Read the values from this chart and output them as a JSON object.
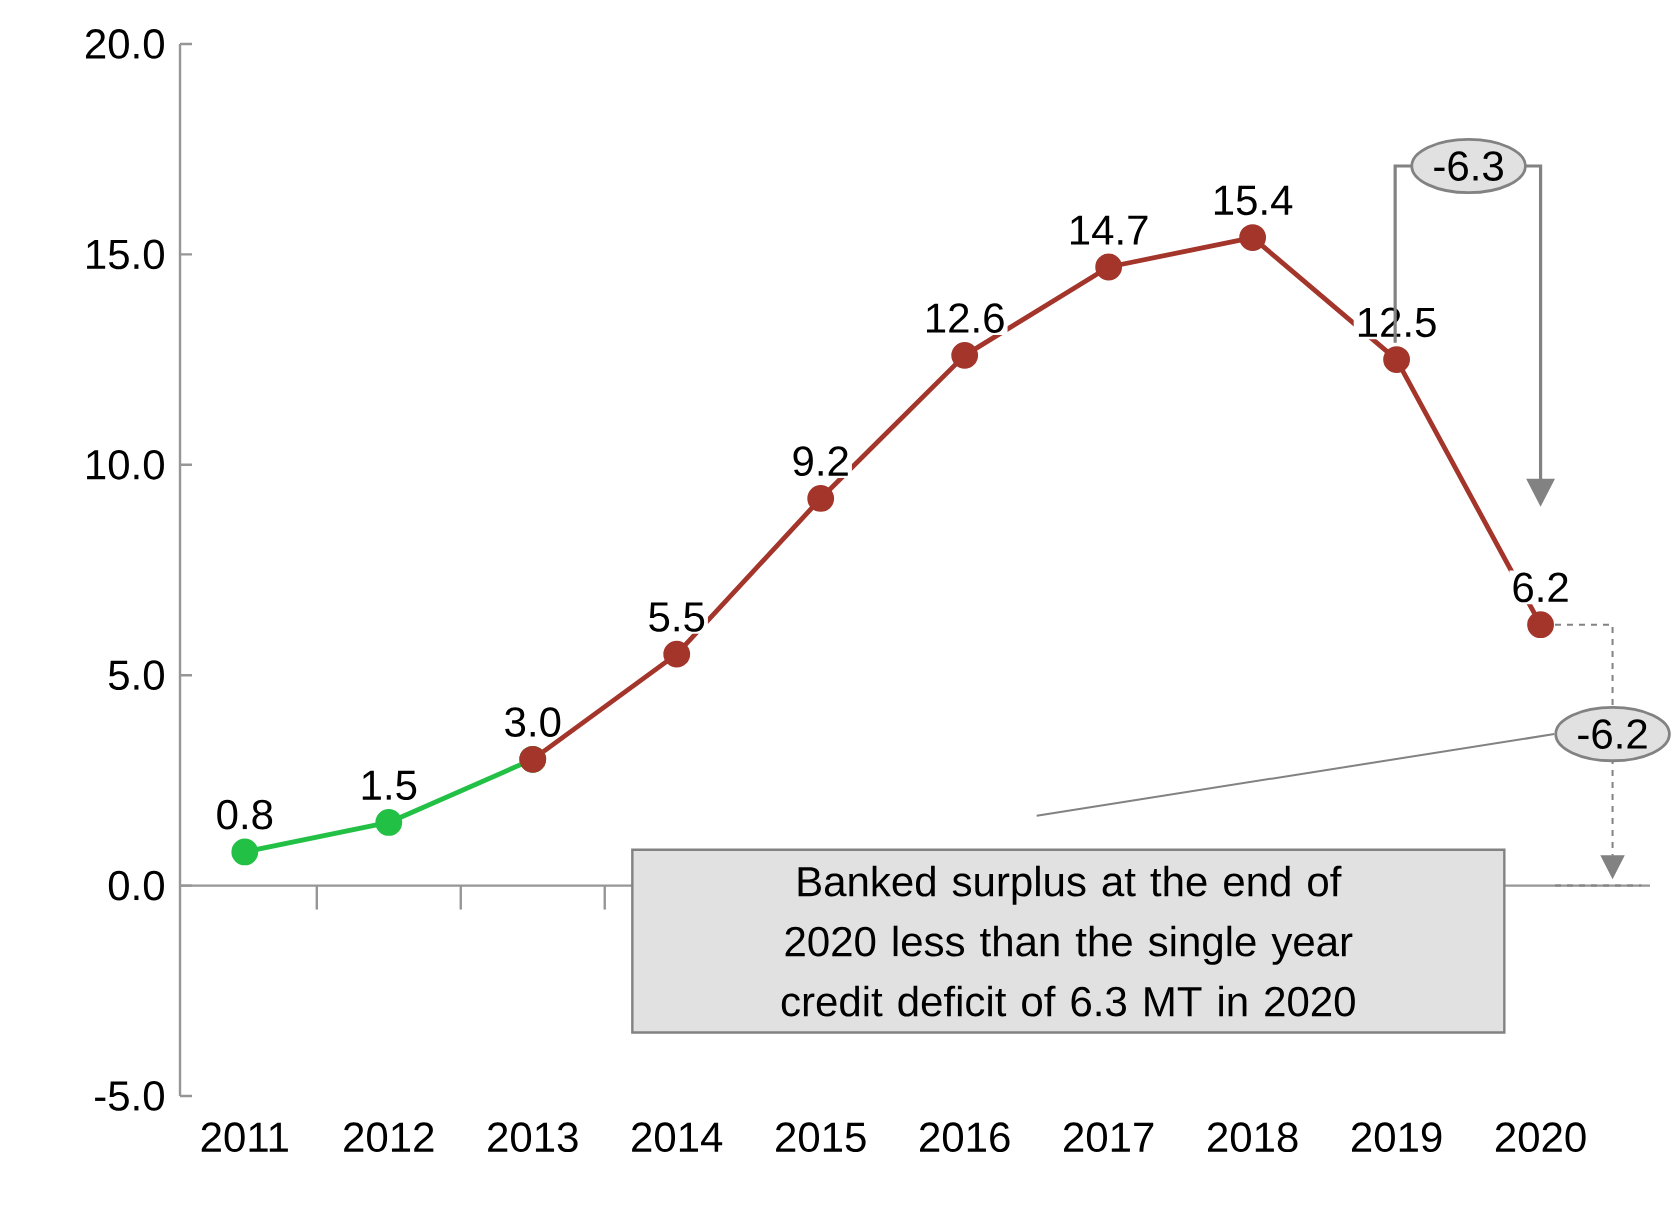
{
  "chart_data": {
    "type": "line",
    "categories": [
      "2011",
      "2012",
      "2013",
      "2014",
      "2015",
      "2016",
      "2017",
      "2018",
      "2019",
      "2020"
    ],
    "series": [
      {
        "color": "#22c045",
        "values": [
          0.8,
          1.5,
          3.0,
          null,
          null,
          null,
          null,
          null,
          null,
          null
        ],
        "value_labels": [
          "0.8",
          "1.5",
          "3.0",
          null,
          null,
          null,
          null,
          null,
          null,
          null
        ]
      },
      {
        "color": "#a3352b",
        "values": [
          null,
          null,
          3.0,
          5.5,
          9.2,
          12.6,
          14.7,
          15.4,
          12.5,
          6.2
        ],
        "value_labels": [
          null,
          null,
          null,
          "5.5",
          "9.2",
          "12.6",
          "14.7",
          "15.4",
          "12.5",
          "6.2"
        ]
      }
    ],
    "ylim": [
      -5,
      20
    ],
    "yticks": [
      {
        "value": -5,
        "label": "-5.0"
      },
      {
        "value": 0,
        "label": "0.0"
      },
      {
        "value": 5,
        "label": "5.0"
      },
      {
        "value": 10,
        "label": "10.0"
      },
      {
        "value": 15,
        "label": "15.0"
      },
      {
        "value": 20,
        "label": "20.0"
      }
    ],
    "marker": "circle",
    "ref_lines": [
      {
        "axis": "y",
        "value": 0,
        "color": "#969696"
      }
    ],
    "annotations": [
      {
        "text": "-6.3",
        "x": "2019",
        "y": 12.5
      },
      {
        "text": "-6.2",
        "x": "2020",
        "y": 6.2
      },
      "Banked surplus at the end of 2020 less than the single year credit deficit of 6.3 MT in 2020"
    ]
  }
}
